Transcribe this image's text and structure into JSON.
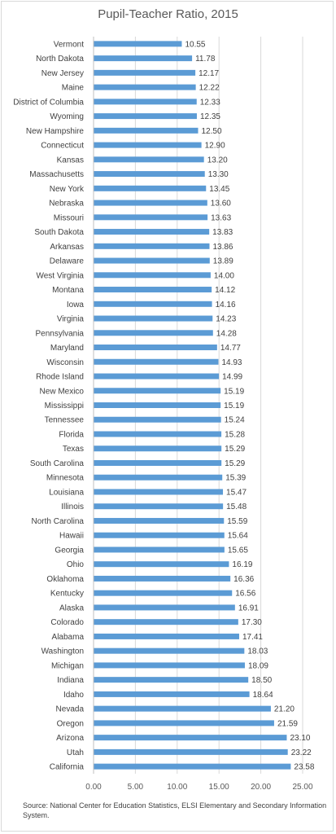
{
  "chart_data": {
    "type": "bar",
    "orientation": "horizontal",
    "title": "Pupil-Teacher Ratio, 2015",
    "xlabel": "",
    "ylabel": "",
    "xlim": [
      0,
      25
    ],
    "xticks": [
      "0.00",
      "5.00",
      "10.00",
      "15.00",
      "20.00",
      "25.00"
    ],
    "grid": true,
    "legend": "none",
    "bar_color": "#5b9bd5",
    "categories": [
      "Vermont",
      "North Dakota",
      "New Jersey",
      "Maine",
      "District of Columbia",
      "Wyoming",
      "New Hampshire",
      "Connecticut",
      "Kansas",
      "Massachusetts",
      "New York",
      "Nebraska",
      "Missouri",
      "South Dakota",
      "Arkansas",
      "Delaware",
      "West Virginia",
      "Montana",
      "Iowa",
      "Virginia",
      "Pennsylvania",
      "Maryland",
      "Wisconsin",
      "Rhode Island",
      "New Mexico",
      "Mississippi",
      "Tennessee",
      "Florida",
      "Texas",
      "South Carolina",
      "Minnesota",
      "Louisiana",
      "Illinois",
      "North Carolina",
      "Hawaii",
      "Georgia",
      "Ohio",
      "Oklahoma",
      "Kentucky",
      "Alaska",
      "Colorado",
      "Alabama",
      "Washington",
      "Michigan",
      "Indiana",
      "Idaho",
      "Nevada",
      "Oregon",
      "Arizona",
      "Utah",
      "California"
    ],
    "values": [
      10.55,
      11.78,
      12.17,
      12.22,
      12.33,
      12.35,
      12.5,
      12.9,
      13.2,
      13.3,
      13.45,
      13.6,
      13.63,
      13.83,
      13.86,
      13.89,
      14.0,
      14.12,
      14.16,
      14.23,
      14.28,
      14.77,
      14.93,
      14.99,
      15.19,
      15.19,
      15.24,
      15.28,
      15.29,
      15.29,
      15.39,
      15.47,
      15.48,
      15.59,
      15.64,
      15.65,
      16.19,
      16.36,
      16.56,
      16.91,
      17.3,
      17.41,
      18.03,
      18.09,
      18.5,
      18.64,
      21.2,
      21.59,
      23.1,
      23.22,
      23.58
    ]
  },
  "source_note": "Source: National Center for Education Statistics, ELSI Elementary and Secondary Information System."
}
